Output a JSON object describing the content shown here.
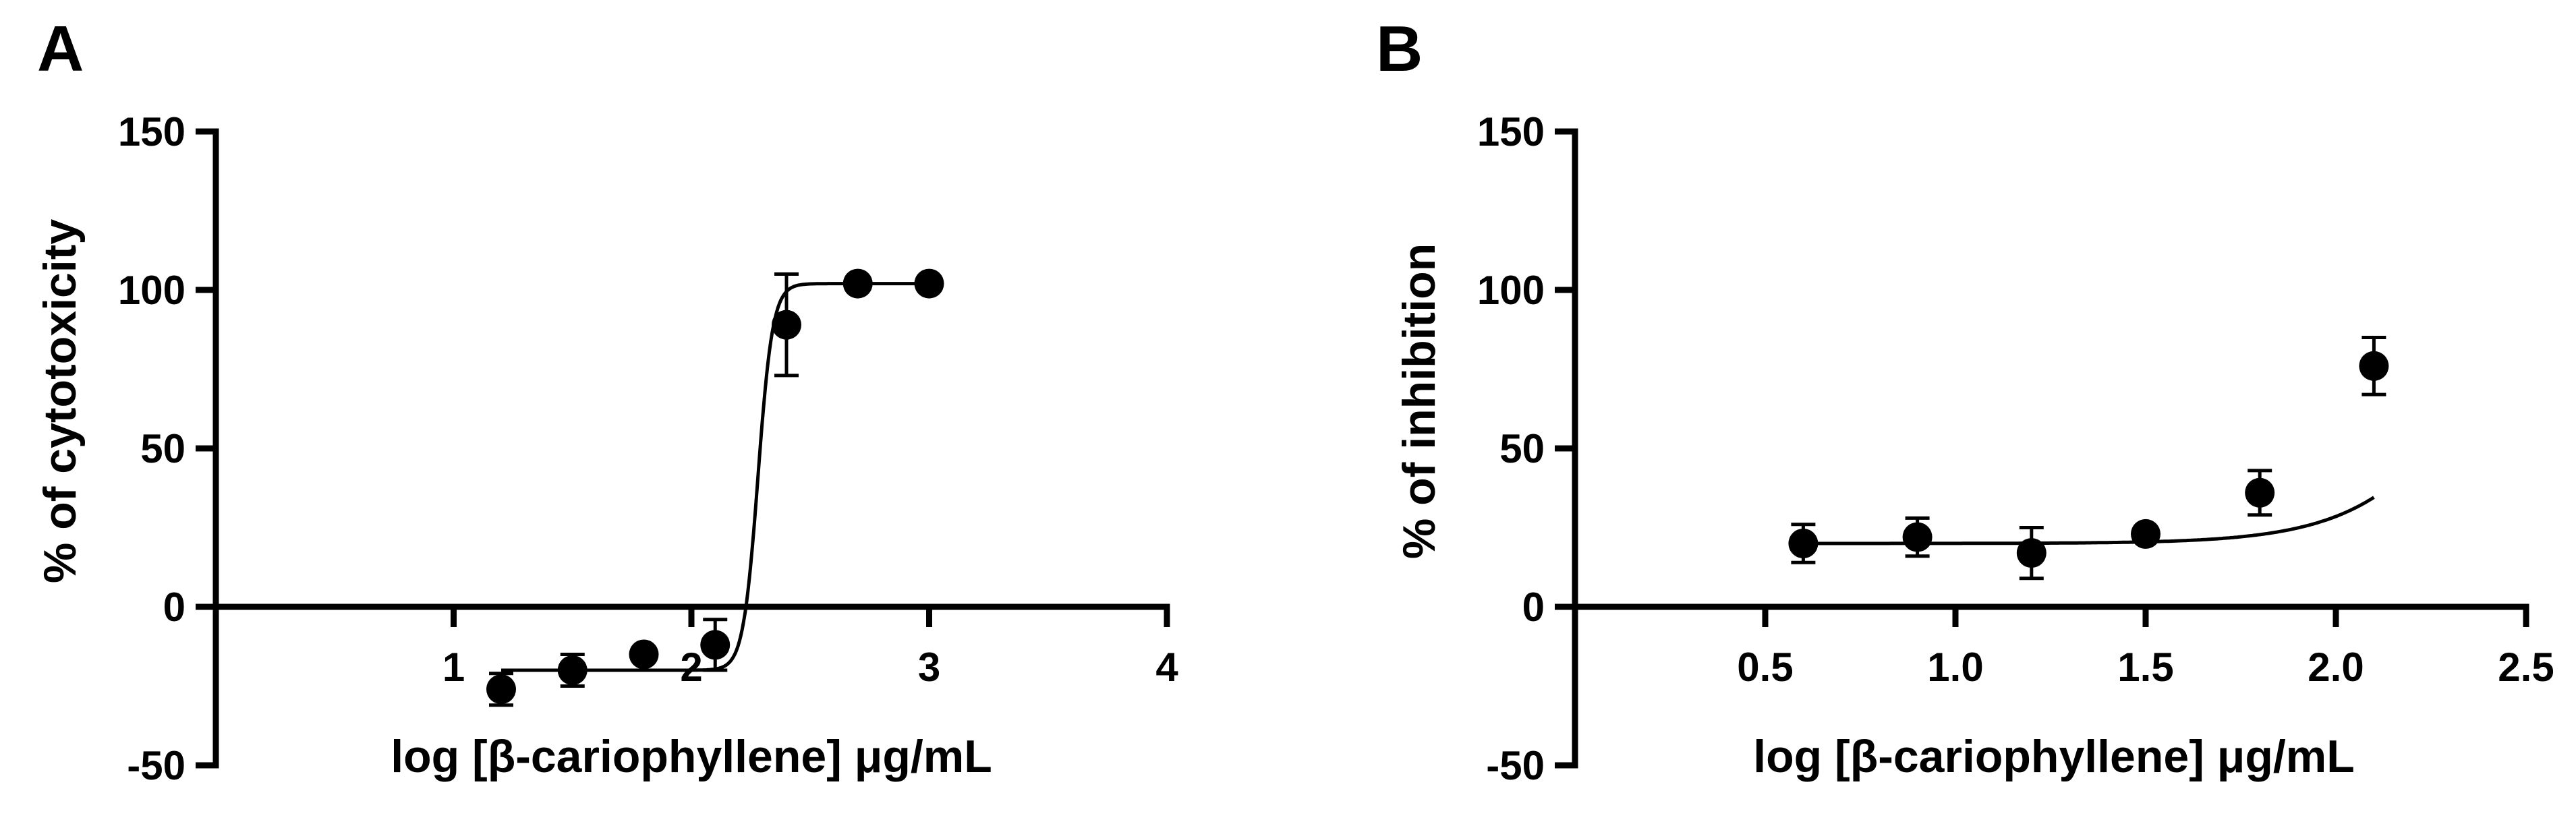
{
  "chart_data": [
    {
      "panel": "A",
      "type": "scatter",
      "title": "",
      "xlabel": "log [β-cariophyllene] μg/mL",
      "ylabel": "% of cytotoxicity",
      "xlim": [
        0,
        4
      ],
      "ylim": [
        -50,
        150
      ],
      "xticks": [
        "1",
        "2",
        "3",
        "4"
      ],
      "yticks": [
        "-50",
        "0",
        "50",
        "100",
        "150"
      ],
      "x": [
        1.2,
        1.5,
        1.8,
        2.1,
        2.4,
        2.7,
        3.0
      ],
      "y": [
        -26,
        -20,
        -15,
        -12,
        89,
        102,
        102
      ],
      "error": [
        5,
        5,
        2,
        8,
        16,
        2,
        2
      ],
      "fit": {
        "bottom": -20,
        "top": 102,
        "logEC50": 2.28,
        "hill": 14
      },
      "grid": false,
      "legend": "none"
    },
    {
      "panel": "B",
      "type": "scatter",
      "title": "",
      "xlabel": "log [β-cariophyllene] μg/mL",
      "ylabel": "% of inhibition",
      "xlim": [
        0,
        2.5
      ],
      "ylim": [
        -50,
        150
      ],
      "xticks": [
        "0.5",
        "1.0",
        "1.5",
        "2.0",
        "2.5"
      ],
      "yticks": [
        "-50",
        "0",
        "50",
        "100",
        "150"
      ],
      "x": [
        0.6,
        0.9,
        1.2,
        1.5,
        1.8,
        2.1
      ],
      "y": [
        20,
        22,
        17,
        23,
        36,
        76
      ],
      "error": [
        6,
        6,
        8,
        2,
        7,
        9
      ],
      "fit": {
        "bottom": 20,
        "top": 180,
        "logEC50": 2.5,
        "hill": 2.5
      },
      "grid": false,
      "legend": "none"
    }
  ]
}
